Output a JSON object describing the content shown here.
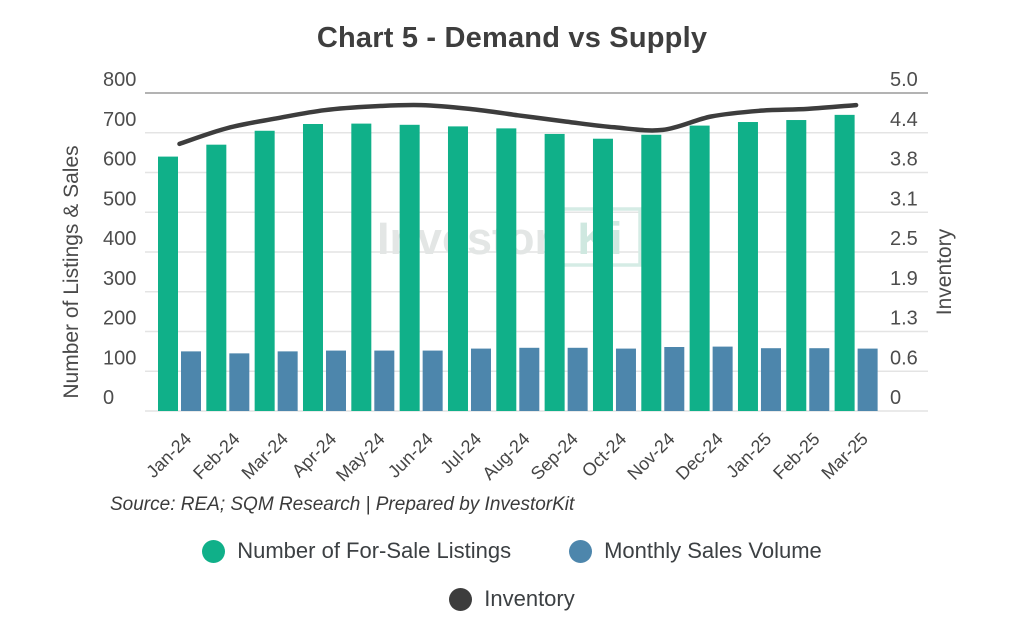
{
  "title": "Chart 5 - Demand vs Supply",
  "source_note": "Source: REA; SQM Research | Prepared by InvestorKit",
  "watermark": {
    "part1": "Investor",
    "star": "*",
    "part2": "Ki"
  },
  "colors": {
    "listings_bar": "#10B089",
    "sales_bar": "#4D86AC",
    "inventory_line": "#3D3D3D",
    "grid": "#E4E4E4",
    "grid_top": "#B3B3B3",
    "tick_text": "#4D4D4D",
    "axis_title_text": "#4A4A4A",
    "x_tick_text": "#454545",
    "watermark_gray": "#E3E6E5",
    "watermark_teal": "#CFE8E0",
    "watermark_box": "#D5ECE5"
  },
  "legend": {
    "items": [
      {
        "label": "Number of For-Sale Listings",
        "color": "#10B089"
      },
      {
        "label": "Monthly Sales Volume",
        "color": "#4D86AC"
      },
      {
        "label": "Inventory",
        "color": "#3D3D3D"
      }
    ]
  },
  "chart_data": {
    "type": "combo",
    "title": "Chart 5 - Demand vs Supply",
    "categories": [
      "Jan-24",
      "Feb-24",
      "Mar-24",
      "Apr-24",
      "May-24",
      "Jun-24",
      "Jul-24",
      "Aug-24",
      "Sep-24",
      "Oct-24",
      "Nov-24",
      "Dec-24",
      "Jan-25",
      "Feb-25",
      "Mar-25"
    ],
    "series": [
      {
        "name": "Number of For-Sale Listings",
        "type": "bar",
        "axis": "left",
        "color": "#10B089",
        "values": [
          640,
          670,
          705,
          722,
          723,
          720,
          716,
          711,
          697,
          685,
          695,
          718,
          727,
          732,
          745
        ]
      },
      {
        "name": "Monthly Sales Volume",
        "type": "bar",
        "axis": "left",
        "color": "#4D86AC",
        "values": [
          150,
          145,
          150,
          152,
          152,
          152,
          157,
          159,
          159,
          157,
          161,
          162,
          158,
          158,
          157
        ]
      },
      {
        "name": "Inventory",
        "type": "line",
        "axis": "right",
        "color": "#3D3D3D",
        "values": [
          4.2,
          4.45,
          4.6,
          4.73,
          4.79,
          4.81,
          4.75,
          4.65,
          4.55,
          4.46,
          4.42,
          4.63,
          4.72,
          4.75,
          4.81
        ]
      }
    ],
    "left_axis": {
      "label": "Number of Listings & Sales",
      "min": 0,
      "max": 800,
      "ticks": [
        "800",
        "700",
        "600",
        "500",
        "400",
        "300",
        "200",
        "100",
        "0"
      ]
    },
    "right_axis": {
      "label": "Inventory",
      "min": 0,
      "max": 5.0,
      "ticks": [
        "5.0",
        "4.4",
        "3.8",
        "3.1",
        "2.5",
        "1.9",
        "1.3",
        "0.6",
        "0"
      ]
    },
    "grid": true,
    "legend_position": "bottom"
  }
}
